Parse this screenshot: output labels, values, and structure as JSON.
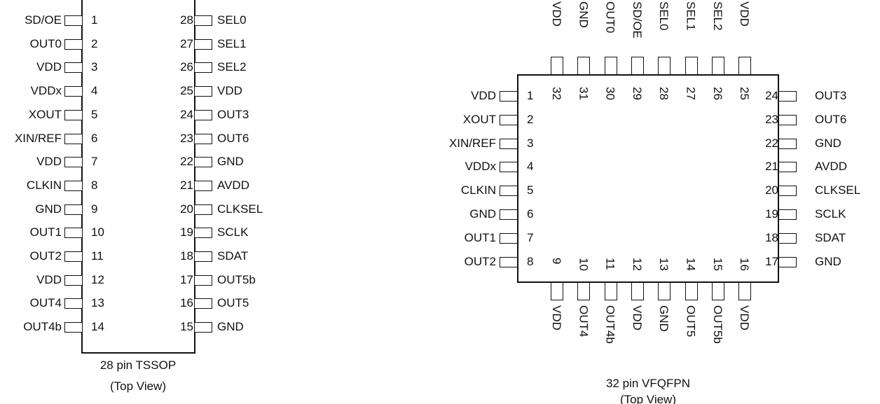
{
  "tssop": {
    "left_pins": [
      {
        "num": "1",
        "name": "SD/OE"
      },
      {
        "num": "2",
        "name": "OUT0"
      },
      {
        "num": "3",
        "name": "VDD"
      },
      {
        "num": "4",
        "name": "VDDx"
      },
      {
        "num": "5",
        "name": "XOUT"
      },
      {
        "num": "6",
        "name": "XIN/REF"
      },
      {
        "num": "7",
        "name": "VDD"
      },
      {
        "num": "8",
        "name": "CLKIN"
      },
      {
        "num": "9",
        "name": "GND"
      },
      {
        "num": "10",
        "name": "OUT1"
      },
      {
        "num": "11",
        "name": "OUT2"
      },
      {
        "num": "12",
        "name": "VDD"
      },
      {
        "num": "13",
        "name": "OUT4"
      },
      {
        "num": "14",
        "name": "OUT4b"
      }
    ],
    "right_pins": [
      {
        "num": "28",
        "name": "SEL0"
      },
      {
        "num": "27",
        "name": "SEL1"
      },
      {
        "num": "26",
        "name": "SEL2"
      },
      {
        "num": "25",
        "name": "VDD"
      },
      {
        "num": "24",
        "name": "OUT3"
      },
      {
        "num": "23",
        "name": "OUT6"
      },
      {
        "num": "22",
        "name": "GND"
      },
      {
        "num": "21",
        "name": "AVDD"
      },
      {
        "num": "20",
        "name": "CLKSEL"
      },
      {
        "num": "19",
        "name": "SCLK"
      },
      {
        "num": "18",
        "name": "SDAT"
      },
      {
        "num": "17",
        "name": "OUT5b"
      },
      {
        "num": "16",
        "name": "OUT5"
      },
      {
        "num": "15",
        "name": "GND"
      }
    ],
    "caption_line1": "28 pin TSSOP",
    "caption_line2": "(Top View)"
  },
  "qfn": {
    "left_pins": [
      {
        "num": "1",
        "name": "VDD"
      },
      {
        "num": "2",
        "name": "XOUT"
      },
      {
        "num": "3",
        "name": "XIN/REF"
      },
      {
        "num": "4",
        "name": "VDDx"
      },
      {
        "num": "5",
        "name": "CLKIN"
      },
      {
        "num": "6",
        "name": "GND"
      },
      {
        "num": "7",
        "name": "OUT1"
      },
      {
        "num": "8",
        "name": "OUT2"
      }
    ],
    "bottom_pins": [
      {
        "num": "9",
        "name": "VDD"
      },
      {
        "num": "10",
        "name": "OUT4"
      },
      {
        "num": "11",
        "name": "OUT4b"
      },
      {
        "num": "12",
        "name": "VDD"
      },
      {
        "num": "13",
        "name": "GND"
      },
      {
        "num": "14",
        "name": "OUT5"
      },
      {
        "num": "15",
        "name": "OUT5b"
      },
      {
        "num": "16",
        "name": "VDD"
      }
    ],
    "right_pins": [
      {
        "num": "24",
        "name": "OUT3"
      },
      {
        "num": "23",
        "name": "OUT6"
      },
      {
        "num": "22",
        "name": "GND"
      },
      {
        "num": "21",
        "name": "AVDD"
      },
      {
        "num": "20",
        "name": "CLKSEL"
      },
      {
        "num": "19",
        "name": "SCLK"
      },
      {
        "num": "18",
        "name": "SDAT"
      },
      {
        "num": "17",
        "name": "GND"
      }
    ],
    "top_pins": [
      {
        "num": "32",
        "name": "VDD"
      },
      {
        "num": "31",
        "name": "GND"
      },
      {
        "num": "30",
        "name": "OUT0"
      },
      {
        "num": "29",
        "name": "SD/OE"
      },
      {
        "num": "28",
        "name": "SEL0"
      },
      {
        "num": "27",
        "name": "SEL1"
      },
      {
        "num": "26",
        "name": "SEL2"
      },
      {
        "num": "25",
        "name": "VDD"
      }
    ],
    "caption_line1": "32 pin VFQFPN",
    "caption_line2": "(Top View)"
  }
}
